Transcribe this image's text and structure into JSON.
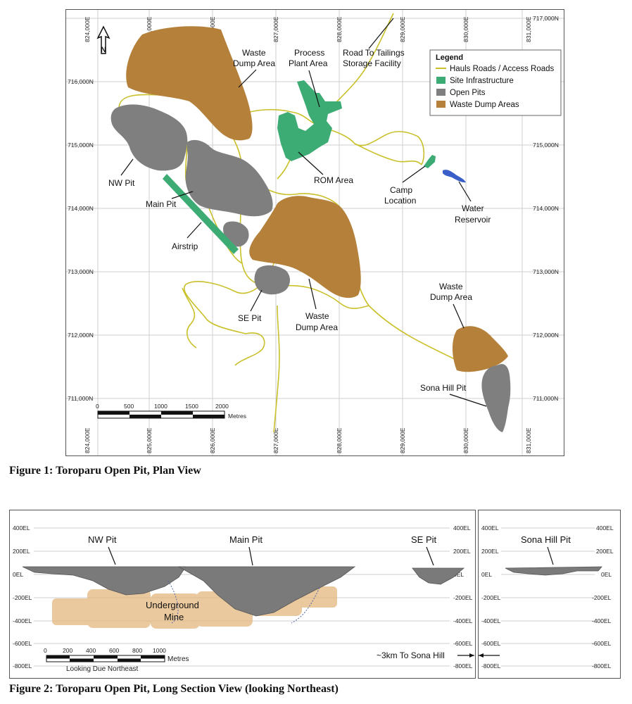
{
  "figure1": {
    "caption": "Figure 1: Toroparu Open Pit, Plan View",
    "easting_labels": [
      "824,000E",
      "825,000E",
      "826,000E",
      "827,000E",
      "828,000E",
      "829,000E",
      "830,000E",
      "831,000E"
    ],
    "northing_labels": [
      "717,000N",
      "716,000N",
      "715,000N",
      "714,000N",
      "713,000N",
      "712,000N",
      "711,000N"
    ],
    "legend": {
      "title": "Legend",
      "items": [
        {
          "label": "Hauls Roads / Access Roads",
          "color": "#c9c02a",
          "kind": "line"
        },
        {
          "label": "Site Infrastructure",
          "color": "#3dab74",
          "kind": "box"
        },
        {
          "label": "Open Pits",
          "color": "#7f7f7f",
          "kind": "box"
        },
        {
          "label": "Waste Dump Areas",
          "color": "#b5803a",
          "kind": "box"
        }
      ]
    },
    "annotations": {
      "waste_dump_n_1": "Waste",
      "waste_dump_n_2": "Dump Area",
      "process_1": "Process",
      "process_2": "Plant Area",
      "tailings_1": "Road To Tailings",
      "tailings_2": "Storage Facility",
      "nw_pit": "NW Pit",
      "main_pit": "Main Pit",
      "rom": "ROM Area",
      "camp_1": "Camp",
      "camp_2": "Location",
      "water_1": "Water",
      "water_2": "Reservoir",
      "airstrip": "Airstrip",
      "se_pit": "SE Pit",
      "waste_dump_c_1": "Waste",
      "waste_dump_c_2": "Dump Area",
      "waste_dump_e_1": "Waste",
      "waste_dump_e_2": "Dump Area",
      "sona_pit": "Sona Hill Pit"
    },
    "north_label": "N",
    "scale": {
      "ticks": [
        "0",
        "500",
        "1000",
        "1500",
        "2000"
      ],
      "unit": "Metres"
    }
  },
  "figure2": {
    "caption": "Figure 2: Toroparu Open Pit, Long Section View (looking Northeast)",
    "elevations": [
      "400EL",
      "200EL",
      "0EL",
      "-200EL",
      "-400EL",
      "-600EL",
      "-800EL"
    ],
    "labels": {
      "nw_pit": "NW Pit",
      "main_pit": "Main Pit",
      "se_pit": "SE Pit",
      "underground_1": "Underground",
      "underground_2": "Mine",
      "sona_pit": "Sona Hill Pit",
      "sona_distance": "~3km To Sona Hill"
    },
    "scale": {
      "ticks": [
        "0",
        "200",
        "400",
        "600",
        "800",
        "1000"
      ],
      "unit": "Metres",
      "note": "Looking Due Northeast"
    }
  },
  "colors": {
    "road": "#c9c02a",
    "infrastructure": "#3dab74",
    "pit": "#7f7f7f",
    "waste": "#b5803a",
    "water": "#3a5fc8"
  }
}
